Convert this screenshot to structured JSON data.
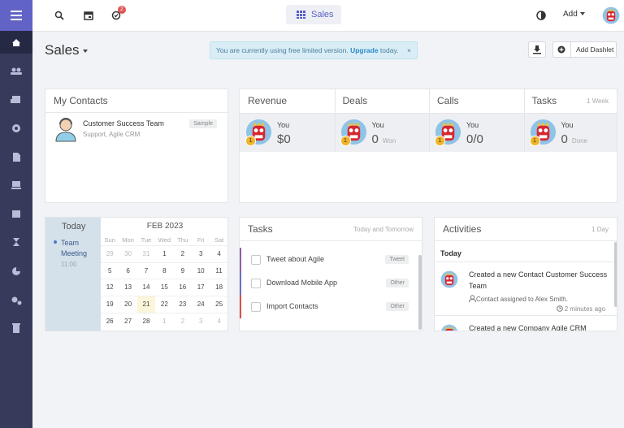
{
  "topbar": {
    "badge": 2,
    "center": "Sales",
    "add": "Add"
  },
  "header": {
    "title": "Sales",
    "notice": {
      "text": "You are currently using free limited version.",
      "link": "Upgrade",
      "suffix": "today.",
      "close": "×"
    },
    "add_dashlet": "Add Dashlet"
  },
  "contacts": {
    "title": "My Contacts",
    "items": [
      {
        "name": "Customer Success Team",
        "subtitle": "Support, Agile CRM",
        "tag": "Sample"
      }
    ]
  },
  "stats": {
    "range": "1 Week",
    "columns": [
      {
        "title": "Revenue",
        "badge": 1,
        "who": "You",
        "value": "$0"
      },
      {
        "title": "Deals",
        "badge": 1,
        "who": "You",
        "value": "0",
        "note": "Won"
      },
      {
        "title": "Calls",
        "badge": 1,
        "who": "You",
        "value": "0/0"
      },
      {
        "title": "Tasks",
        "badge": 1,
        "who": "You",
        "value": "0",
        "note": "Done"
      }
    ]
  },
  "calendar": {
    "today": "Today",
    "event": {
      "title": "Team Meeting",
      "time": "11:00"
    },
    "month": "FEB 2023",
    "weekdays": [
      "Sun",
      "Mon",
      "Tue",
      "Wed",
      "Thu",
      "Fri",
      "Sat"
    ],
    "weeks": [
      [
        29,
        30,
        31,
        1,
        2,
        3,
        4
      ],
      [
        5,
        6,
        7,
        8,
        9,
        10,
        11
      ],
      [
        12,
        13,
        14,
        15,
        16,
        17,
        18
      ],
      [
        19,
        20,
        21,
        22,
        23,
        24,
        25
      ],
      [
        26,
        27,
        28,
        1,
        2,
        3,
        4
      ]
    ]
  },
  "tasks": {
    "title": "Tasks",
    "range": "Today and Tomorrow",
    "items": [
      {
        "label": "Tweet about Agile",
        "tag": "Tweet"
      },
      {
        "label": "Download Mobile App",
        "tag": "Other"
      },
      {
        "label": "Import Contacts",
        "tag": "Other"
      }
    ]
  },
  "activities": {
    "title": "Activities",
    "range": "1 Day",
    "day": "Today",
    "items": [
      {
        "text": "Created a new Contact Customer Success Team",
        "detail": "Contact assigned to Alex Smith.",
        "time": "2 minutes ago"
      },
      {
        "text": "Created a new Company Agile CRM"
      }
    ]
  }
}
